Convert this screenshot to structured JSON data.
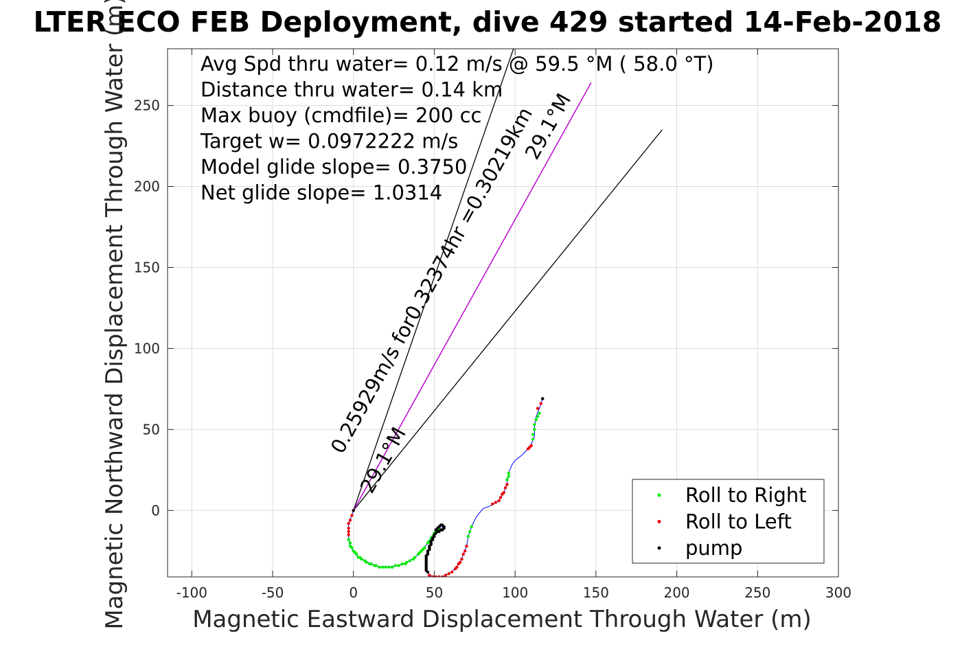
{
  "chart_data": {
    "type": "scatter",
    "title": "LTER ECO FEB Deployment, dive 429 started 14-Feb-2018",
    "xlabel": "Magnetic Eastward Displacement Through Water (m)",
    "ylabel": "Magnetic Northward Displacement Through Water (m)",
    "xlim": [
      -115,
      300
    ],
    "ylim": [
      -41,
      285
    ],
    "xticks": [
      -100,
      -50,
      0,
      50,
      100,
      150,
      200,
      250,
      300
    ],
    "yticks": [
      0,
      50,
      100,
      150,
      200,
      250
    ],
    "xtick_labels": [
      "-100",
      "-50",
      "0",
      "50",
      "100",
      "150",
      "200",
      "250",
      "300"
    ],
    "ytick_labels": [
      "0",
      "50",
      "100",
      "150",
      "200",
      "250"
    ],
    "grid": true,
    "legend_position": "bottom-right",
    "annotations": [
      "Avg Spd thru water=  0.12 m/s @  59.5 °M ( 58.0 °T)",
      "Distance thru water=  0.14 km",
      "Max buoy (cmdfile)= 200 cc",
      "Target w= 0.0972222 m/s",
      "Model glide slope= 0.3750",
      "Net glide slope= 1.0314"
    ],
    "rotated_labels": [
      {
        "text": "0.25929m/s for0.32374hr =0.30219km",
        "x": 52,
        "y": 140,
        "angle_deg": 60.9
      },
      {
        "text": "29.1°M",
        "x": 22,
        "y": 29,
        "angle_deg": 60.9
      },
      {
        "text": "29.1°M",
        "x": 124,
        "y": 235,
        "angle_deg": 60.9
      }
    ],
    "reference_lines": [
      {
        "color": "#000000",
        "points": [
          [
            0,
            0
          ],
          [
            99,
            285
          ]
        ]
      },
      {
        "color": "#000000",
        "points": [
          [
            0,
            0
          ],
          [
            191,
            235
          ]
        ]
      },
      {
        "color": "#0000cc",
        "points": [
          [
            0,
            0
          ],
          [
            147,
            264
          ]
        ]
      },
      {
        "color": "#cc00cc",
        "points": [
          [
            0,
            0
          ],
          [
            147,
            264
          ]
        ]
      }
    ],
    "track": {
      "color": "#0000ff",
      "points": [
        [
          0,
          0
        ],
        [
          -1,
          -3
        ],
        [
          -3,
          -8
        ],
        [
          -3,
          -13
        ],
        [
          -3,
          -18
        ],
        [
          -2,
          -22
        ],
        [
          0,
          -25
        ],
        [
          3,
          -29
        ],
        [
          7,
          -31
        ],
        [
          11,
          -33
        ],
        [
          16,
          -35
        ],
        [
          22,
          -35
        ],
        [
          28,
          -34
        ],
        [
          33,
          -32
        ],
        [
          38,
          -29
        ],
        [
          42,
          -25
        ],
        [
          46,
          -20
        ],
        [
          49,
          -16
        ],
        [
          52,
          -12
        ],
        [
          54,
          -10
        ],
        [
          55,
          -9
        ],
        [
          55,
          -10
        ],
        [
          55,
          -12
        ],
        [
          52,
          -13
        ],
        [
          50,
          -16
        ],
        [
          48,
          -20
        ],
        [
          46,
          -26
        ],
        [
          45,
          -32
        ],
        [
          45,
          -37
        ],
        [
          47,
          -40
        ],
        [
          51,
          -41
        ],
        [
          55,
          -41
        ],
        [
          59,
          -39
        ],
        [
          63,
          -36
        ],
        [
          66,
          -32
        ],
        [
          68,
          -27
        ],
        [
          70,
          -22
        ],
        [
          71,
          -16
        ],
        [
          73,
          -10
        ],
        [
          76,
          -4
        ],
        [
          80,
          1
        ],
        [
          85,
          3
        ],
        [
          90,
          6
        ],
        [
          93,
          11
        ],
        [
          95,
          17
        ],
        [
          96,
          23
        ],
        [
          98,
          28
        ],
        [
          100,
          31
        ],
        [
          104,
          34
        ],
        [
          107,
          37
        ],
        [
          110,
          41
        ],
        [
          112,
          46
        ],
        [
          112,
          52
        ],
        [
          113,
          58
        ],
        [
          115,
          63
        ],
        [
          117,
          69
        ]
      ]
    },
    "series": [
      {
        "name": "Roll to Right",
        "color": "#00ee00",
        "points": [
          [
            -3,
            -18
          ],
          [
            -2,
            -20
          ],
          [
            -2,
            -22
          ],
          [
            -1,
            -23
          ],
          [
            0,
            -25
          ],
          [
            1,
            -26
          ],
          [
            2,
            -27
          ],
          [
            3,
            -29
          ],
          [
            4,
            -29
          ],
          [
            5,
            -30
          ],
          [
            7,
            -31
          ],
          [
            8,
            -32
          ],
          [
            10,
            -33
          ],
          [
            11,
            -33
          ],
          [
            13,
            -34
          ],
          [
            14,
            -34
          ],
          [
            16,
            -35
          ],
          [
            18,
            -35
          ],
          [
            20,
            -35
          ],
          [
            22,
            -35
          ],
          [
            24,
            -35
          ],
          [
            26,
            -34
          ],
          [
            28,
            -34
          ],
          [
            30,
            -33
          ],
          [
            32,
            -33
          ],
          [
            33,
            -32
          ],
          [
            35,
            -31
          ],
          [
            37,
            -30
          ],
          [
            38,
            -29
          ],
          [
            40,
            -27
          ],
          [
            41,
            -26
          ],
          [
            42,
            -25
          ],
          [
            43,
            -24
          ],
          [
            44,
            -23
          ],
          [
            46,
            -20
          ],
          [
            47,
            -19
          ],
          [
            48,
            -17
          ],
          [
            49,
            -16
          ],
          [
            50,
            -14
          ],
          [
            51,
            -13
          ],
          [
            52,
            -12
          ],
          [
            53,
            -11
          ],
          [
            71,
            -16
          ],
          [
            72,
            -13
          ],
          [
            73,
            -10
          ],
          [
            96,
            23
          ],
          [
            96,
            21
          ],
          [
            95,
            19
          ],
          [
            111,
            44
          ],
          [
            111,
            47
          ],
          [
            112,
            50
          ],
          [
            112,
            53
          ],
          [
            113,
            56
          ],
          [
            114,
            58
          ],
          [
            115,
            60
          ]
        ]
      },
      {
        "name": "Roll to Left",
        "color": "#ee0000",
        "points": [
          [
            0,
            0
          ],
          [
            -1,
            -3
          ],
          [
            -2,
            -6
          ],
          [
            -3,
            -8
          ],
          [
            -3,
            -11
          ],
          [
            -3,
            -13
          ],
          [
            -3,
            -15
          ],
          [
            47,
            -40
          ],
          [
            49,
            -41
          ],
          [
            51,
            -41
          ],
          [
            53,
            -41
          ],
          [
            55,
            -41
          ],
          [
            57,
            -40
          ],
          [
            59,
            -39
          ],
          [
            61,
            -38
          ],
          [
            63,
            -36
          ],
          [
            64,
            -35
          ],
          [
            65,
            -33
          ],
          [
            66,
            -32
          ],
          [
            67,
            -30
          ],
          [
            68,
            -27
          ],
          [
            69,
            -25
          ],
          [
            70,
            -22
          ],
          [
            86,
            4
          ],
          [
            88,
            5
          ],
          [
            90,
            6
          ],
          [
            91,
            8
          ],
          [
            92,
            10
          ],
          [
            93,
            11
          ],
          [
            94,
            14
          ],
          [
            95,
            16
          ],
          [
            110,
            40
          ],
          [
            109,
            39
          ],
          [
            108,
            38
          ],
          [
            117,
            69
          ],
          [
            116,
            66
          ],
          [
            114,
            63
          ]
        ]
      },
      {
        "name": "pump",
        "color": "#000000",
        "points": [
          [
            54,
            -9
          ],
          [
            55,
            -9
          ],
          [
            56,
            -10
          ],
          [
            56,
            -11
          ],
          [
            55,
            -12
          ],
          [
            54,
            -12
          ],
          [
            53,
            -13
          ],
          [
            52,
            -13
          ],
          [
            51,
            -14
          ],
          [
            50,
            -15
          ],
          [
            50,
            -16
          ],
          [
            49,
            -17
          ],
          [
            48,
            -19
          ],
          [
            48,
            -20
          ],
          [
            47,
            -22
          ],
          [
            47,
            -23
          ],
          [
            46,
            -25
          ],
          [
            46,
            -26
          ],
          [
            45,
            -28
          ],
          [
            45,
            -29
          ],
          [
            45,
            -31
          ],
          [
            45,
            -32
          ],
          [
            45,
            -34
          ],
          [
            45,
            -35
          ],
          [
            45,
            -37
          ],
          [
            46,
            -38
          ],
          [
            53,
            -10
          ],
          [
            52,
            -11
          ],
          [
            51,
            -12
          ],
          [
            49,
            -18
          ],
          [
            48,
            -21
          ],
          [
            47,
            -24
          ],
          [
            46,
            -27
          ],
          [
            45,
            -30
          ],
          [
            45,
            -33
          ],
          [
            45,
            -36
          ],
          [
            0,
            0
          ],
          [
            117,
            69
          ]
        ]
      }
    ]
  }
}
